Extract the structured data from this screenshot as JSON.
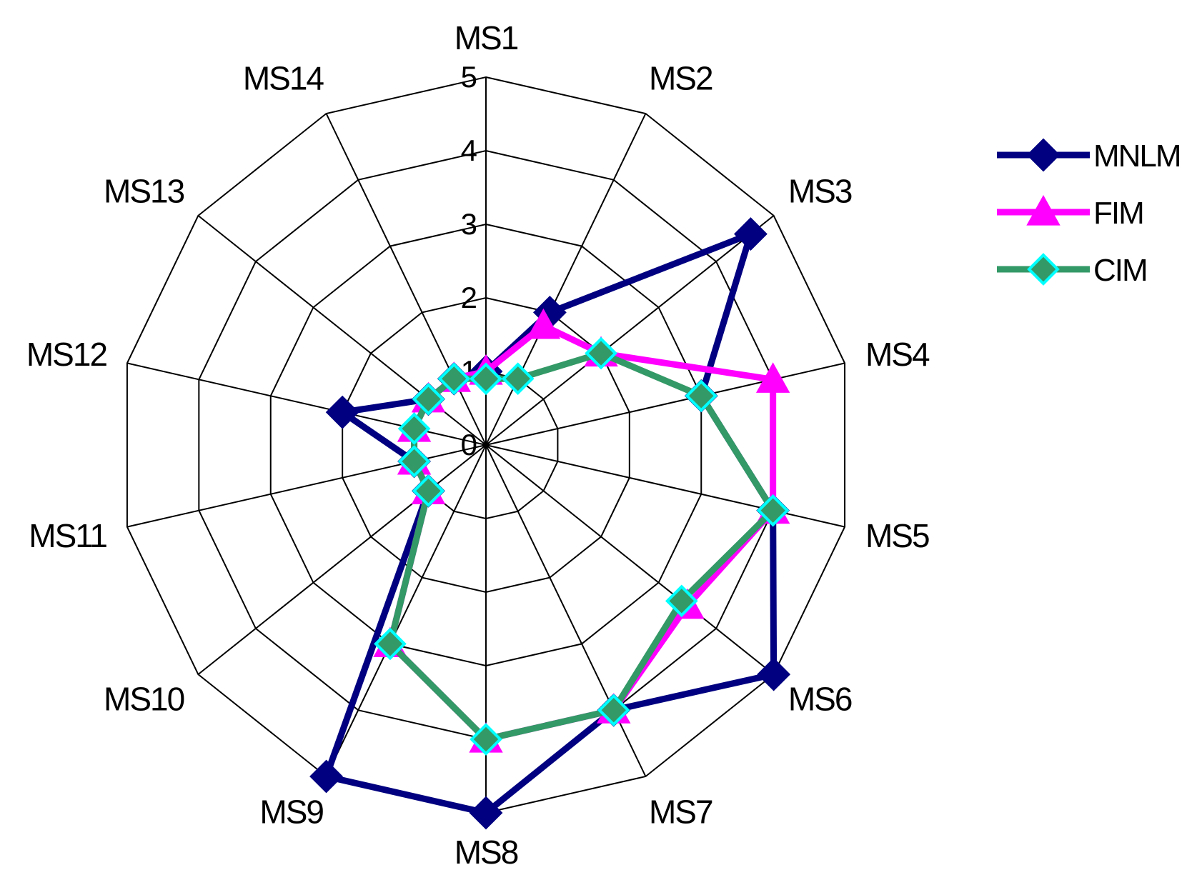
{
  "chart_data": {
    "type": "radar",
    "title": "",
    "categories": [
      "MS1",
      "MS2",
      "MS3",
      "MS4",
      "MS5",
      "MS6",
      "MS7",
      "MS8",
      "MS9",
      "MS10",
      "MS11",
      "MS12",
      "MS13",
      "MS14"
    ],
    "scale": {
      "min": 0,
      "max": 5,
      "ticks": [
        "0",
        "1",
        "2",
        "3",
        "4",
        "5"
      ]
    },
    "grid": true,
    "legend_position": "right",
    "series": [
      {
        "name": "MNLM",
        "color": "#000080",
        "marker": "diamond",
        "values": [
          1.0,
          2.0,
          4.6,
          3.0,
          4.0,
          5.0,
          4.0,
          5.0,
          5.0,
          1.0,
          1.0,
          2.0,
          1.0,
          1.0
        ]
      },
      {
        "name": "FIM",
        "color": "#FF00FF",
        "marker": "triangle",
        "values": [
          1.0,
          1.8,
          2.0,
          4.0,
          4.0,
          3.5,
          4.0,
          4.0,
          3.0,
          1.0,
          1.0,
          1.0,
          1.0,
          1.0
        ]
      },
      {
        "name": "CIM",
        "color": "#339966",
        "marker": "diamond-cyan",
        "values": [
          0.9,
          1.0,
          2.0,
          3.0,
          4.0,
          3.4,
          4.0,
          4.0,
          3.0,
          1.0,
          1.0,
          1.0,
          1.0,
          1.0
        ]
      }
    ]
  }
}
